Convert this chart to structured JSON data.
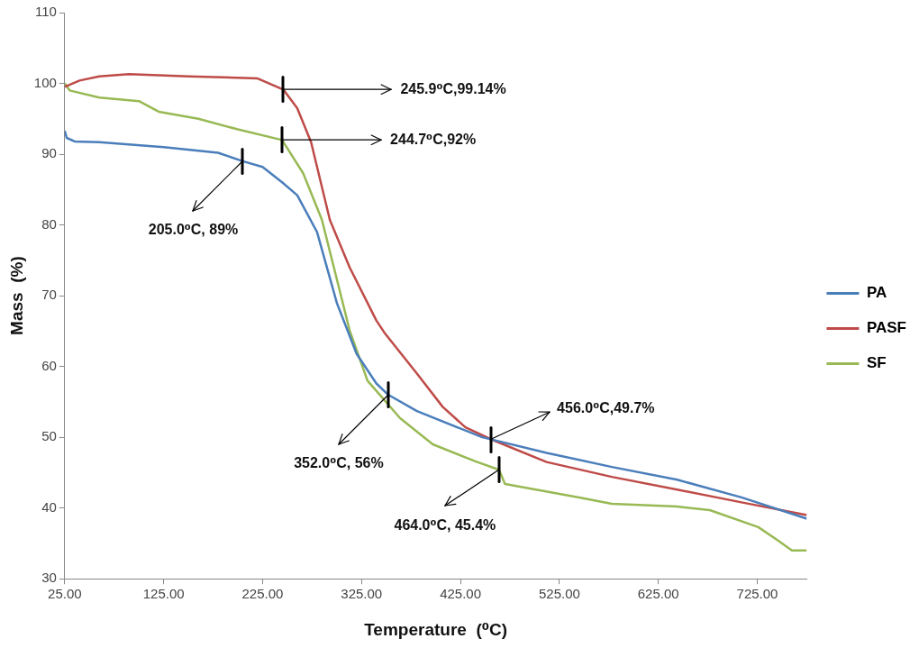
{
  "chart_data": {
    "type": "line",
    "xlabel": "Temperature  (⁰C)",
    "ylabel": "Mass  (%)",
    "xlim": [
      25,
      775
    ],
    "ylim": [
      30,
      110
    ],
    "xticks": [
      {
        "value": 25,
        "label": "25.00"
      },
      {
        "value": 125,
        "label": "125.00"
      },
      {
        "value": 225,
        "label": "225.00"
      },
      {
        "value": 325,
        "label": "325.00"
      },
      {
        "value": 425,
        "label": "425.00"
      },
      {
        "value": 525,
        "label": "525.00"
      },
      {
        "value": 625,
        "label": "625.00"
      },
      {
        "value": 725,
        "label": "725.00"
      }
    ],
    "yticks": [
      30,
      40,
      50,
      60,
      70,
      80,
      90,
      100,
      110
    ],
    "legend": "right",
    "marker": "none",
    "line_style": "solid",
    "series": [
      {
        "name": "PA",
        "color": "#4a7ebb",
        "x": [
          25,
          27,
          35,
          60,
          125,
          180,
          205,
          225,
          245,
          260,
          280,
          300,
          320,
          340,
          352,
          381,
          447,
          512,
          578,
          644,
          709,
          775
        ],
        "values": [
          93.3,
          92.3,
          91.8,
          91.7,
          91.0,
          90.2,
          89,
          88.2,
          86.0,
          84.2,
          79,
          69,
          61.8,
          57.6,
          56,
          53.7,
          50.0,
          47.8,
          45.8,
          44.0,
          41.5,
          38.5
        ]
      },
      {
        "name": "PASF",
        "color": "#be4b48",
        "x": [
          25,
          40,
          60,
          90,
          150,
          220,
          245.9,
          260,
          274,
          293,
          313,
          340,
          348,
          381,
          407,
          430,
          456,
          512,
          578,
          644,
          709,
          775
        ],
        "values": [
          99.5,
          100.4,
          101.0,
          101.3,
          101.0,
          100.7,
          99.14,
          96.5,
          91.7,
          80.7,
          74,
          66.5,
          64.8,
          59,
          54.3,
          51.4,
          49.7,
          46.5,
          44.4,
          42.6,
          40.8,
          39.0
        ]
      },
      {
        "name": "SF",
        "color": "#98b954",
        "x": [
          25,
          30,
          60,
          100,
          120,
          160,
          200,
          244.7,
          266,
          285,
          301,
          313,
          331,
          364,
          397,
          440,
          464,
          470,
          545,
          578,
          644,
          677,
          726,
          746,
          760,
          775
        ],
        "values": [
          100,
          99,
          98,
          97.5,
          96,
          95,
          93.5,
          92,
          87.3,
          80.7,
          71.8,
          65.1,
          58,
          52.7,
          49,
          46.6,
          45.4,
          43.4,
          41.5,
          40.6,
          40.2,
          39.7,
          37.3,
          35.4,
          34.0,
          34.0
        ]
      }
    ],
    "annotations": [
      {
        "text": "245.9⁰C,99.14%",
        "x": 245.9,
        "y": 99.14
      },
      {
        "text": "244.7⁰C,92%",
        "x": 244.7,
        "y": 92
      },
      {
        "text": "205.0⁰C, 89%",
        "x": 205,
        "y": 89
      },
      {
        "text": "352.0⁰C, 56%",
        "x": 352,
        "y": 56
      },
      {
        "text": "456.0⁰C,49.7%",
        "x": 456,
        "y": 49.7
      },
      {
        "text": "464.0⁰C, 45.4%",
        "x": 464,
        "y": 45.4
      }
    ]
  }
}
